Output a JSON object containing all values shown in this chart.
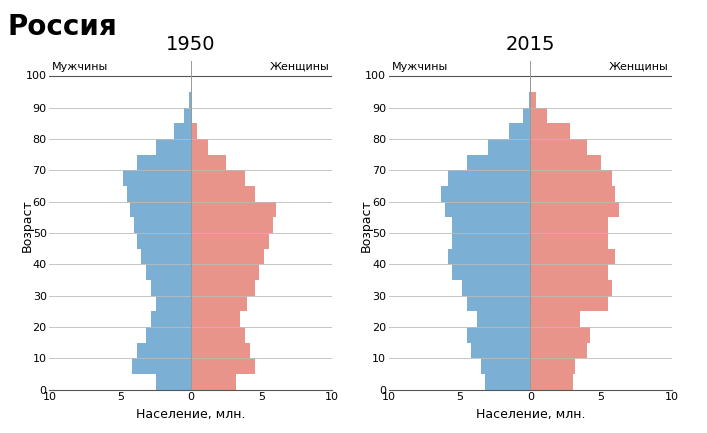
{
  "title": "Россия",
  "years": [
    "1950",
    "2015"
  ],
  "age_bins": [
    0,
    5,
    10,
    15,
    20,
    25,
    30,
    35,
    40,
    45,
    50,
    55,
    60,
    65,
    70,
    75,
    80,
    85,
    90,
    95
  ],
  "male_1950": [
    2.5,
    4.2,
    3.8,
    3.2,
    2.8,
    2.5,
    2.8,
    3.2,
    3.5,
    3.8,
    4.0,
    4.3,
    4.5,
    4.8,
    3.8,
    2.5,
    1.2,
    0.5,
    0.1,
    0.02
  ],
  "female_1950": [
    3.2,
    4.5,
    4.2,
    3.8,
    3.5,
    4.0,
    4.5,
    4.8,
    5.2,
    5.5,
    5.8,
    6.0,
    4.5,
    3.8,
    2.5,
    1.2,
    0.4,
    0.1,
    0.02,
    0.005
  ],
  "male_2015": [
    3.2,
    3.5,
    4.2,
    4.5,
    3.8,
    4.5,
    4.8,
    5.5,
    5.8,
    5.5,
    5.5,
    6.0,
    6.3,
    5.8,
    4.5,
    3.0,
    1.5,
    0.5,
    0.12,
    0.02
  ],
  "female_2015": [
    3.0,
    3.2,
    4.0,
    4.2,
    3.5,
    5.5,
    5.8,
    5.5,
    6.0,
    5.5,
    5.5,
    6.3,
    6.0,
    5.8,
    5.0,
    4.0,
    2.8,
    1.2,
    0.4,
    0.08
  ],
  "male_color": "#7bafd4",
  "female_color": "#e8948a",
  "center_line_color": "#999999",
  "grid_color": "#bbbbbb",
  "xlim": 10,
  "xlabel": "Население, млн.",
  "ylabel": "Возраст",
  "males_label": "Мужчины",
  "females_label": "Женщины",
  "background_color": "#ffffff",
  "title_fontsize": 20,
  "year_fontsize": 14,
  "label_fontsize": 8,
  "axis_label_fontsize": 9
}
